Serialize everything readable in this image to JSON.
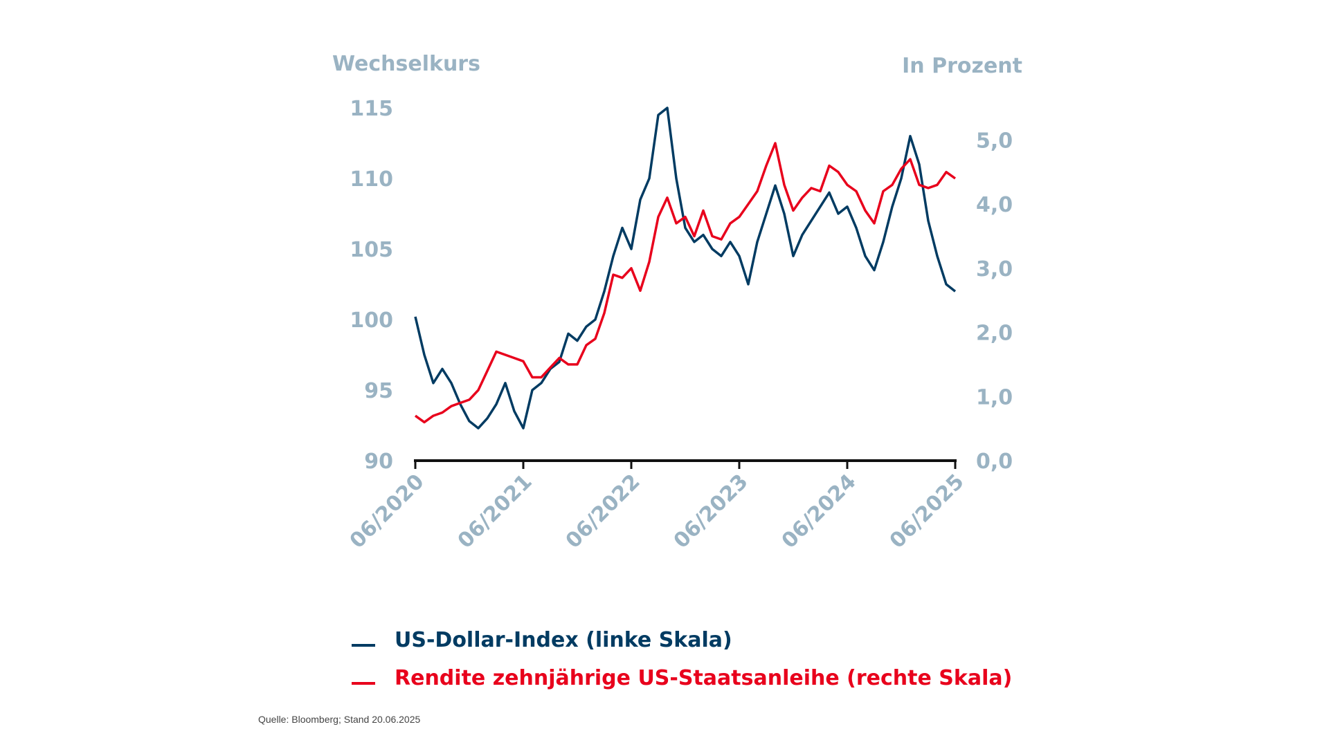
{
  "chart_data": {
    "type": "line",
    "left_axis_title": "Wechselkurs",
    "right_axis_title": "In Prozent",
    "left_ylim": [
      90,
      115
    ],
    "right_ylim": [
      0,
      5.5
    ],
    "left_ticks": [
      "90",
      "95",
      "100",
      "105",
      "110",
      "115"
    ],
    "left_tick_values": [
      90,
      95,
      100,
      105,
      110,
      115
    ],
    "right_ticks": [
      "0,0",
      "1,0",
      "2,0",
      "3,0",
      "4,0",
      "5,0"
    ],
    "right_tick_values": [
      0,
      1,
      2,
      3,
      4,
      5
    ],
    "x_ticks": [
      "06/2020",
      "06/2021",
      "06/2022",
      "06/2023",
      "06/2024",
      "06/2025"
    ],
    "x_start": "2020-06",
    "x_end": "2025-06",
    "x": [
      "2020-06",
      "2020-07",
      "2020-08",
      "2020-09",
      "2020-10",
      "2020-11",
      "2020-12",
      "2021-01",
      "2021-02",
      "2021-03",
      "2021-04",
      "2021-05",
      "2021-06",
      "2021-07",
      "2021-08",
      "2021-09",
      "2021-10",
      "2021-11",
      "2021-12",
      "2022-01",
      "2022-02",
      "2022-03",
      "2022-04",
      "2022-05",
      "2022-06",
      "2022-07",
      "2022-08",
      "2022-09",
      "2022-10",
      "2022-11",
      "2022-12",
      "2023-01",
      "2023-02",
      "2023-03",
      "2023-04",
      "2023-05",
      "2023-06",
      "2023-07",
      "2023-08",
      "2023-09",
      "2023-10",
      "2023-11",
      "2023-12",
      "2024-01",
      "2024-02",
      "2024-03",
      "2024-04",
      "2024-05",
      "2024-06",
      "2024-07",
      "2024-08",
      "2024-09",
      "2024-10",
      "2024-11",
      "2024-12",
      "2025-01",
      "2025-02",
      "2025-03",
      "2025-04",
      "2025-05",
      "2025-06"
    ],
    "series": [
      {
        "name": "US-Dollar-Index (linke Skala)",
        "axis": "left",
        "color": "#003b62",
        "values": [
          100.2,
          97.5,
          95.5,
          96.5,
          95.5,
          94,
          92.8,
          92.3,
          93,
          94,
          95.5,
          93.5,
          92.3,
          95,
          95.5,
          96.5,
          97,
          99,
          98.5,
          99.5,
          100,
          102,
          104.5,
          106.5,
          105,
          108.5,
          110,
          114.5,
          115,
          110,
          106.5,
          105.5,
          106,
          105,
          104.5,
          105.5,
          104.5,
          102.5,
          105.5,
          107.5,
          109.5,
          107.5,
          104.5,
          106,
          107,
          108,
          109,
          107.5,
          108,
          106.5,
          104.5,
          103.5,
          105.5,
          108,
          110,
          113,
          111,
          107,
          104.5,
          102.5,
          102
        ]
      },
      {
        "name": "Rendite zehnjährige US-Staatsanleihe (rechte Skala)",
        "axis": "right",
        "color": "#e8001c",
        "values": [
          0.7,
          0.6,
          0.7,
          0.75,
          0.85,
          0.9,
          0.95,
          1.1,
          1.4,
          1.7,
          1.65,
          1.6,
          1.55,
          1.3,
          1.3,
          1.45,
          1.6,
          1.5,
          1.5,
          1.8,
          1.9,
          2.3,
          2.9,
          2.85,
          3.0,
          2.65,
          3.1,
          3.8,
          4.1,
          3.7,
          3.8,
          3.5,
          3.9,
          3.5,
          3.45,
          3.7,
          3.8,
          4.0,
          4.2,
          4.6,
          4.95,
          4.3,
          3.9,
          4.1,
          4.25,
          4.2,
          4.6,
          4.5,
          4.3,
          4.2,
          3.9,
          3.7,
          4.2,
          4.3,
          4.55,
          4.7,
          4.3,
          4.25,
          4.3,
          4.5,
          4.4
        ]
      }
    ],
    "grid": false,
    "legend_placement": "bottom"
  },
  "legend": {
    "item1": "US-Dollar-Index (linke Skala)",
    "item2": "Rendite zehnjährige US-Staatsanleihe (rechte Skala)"
  },
  "source": "Quelle: Bloomberg; Stand 20.06.2025"
}
